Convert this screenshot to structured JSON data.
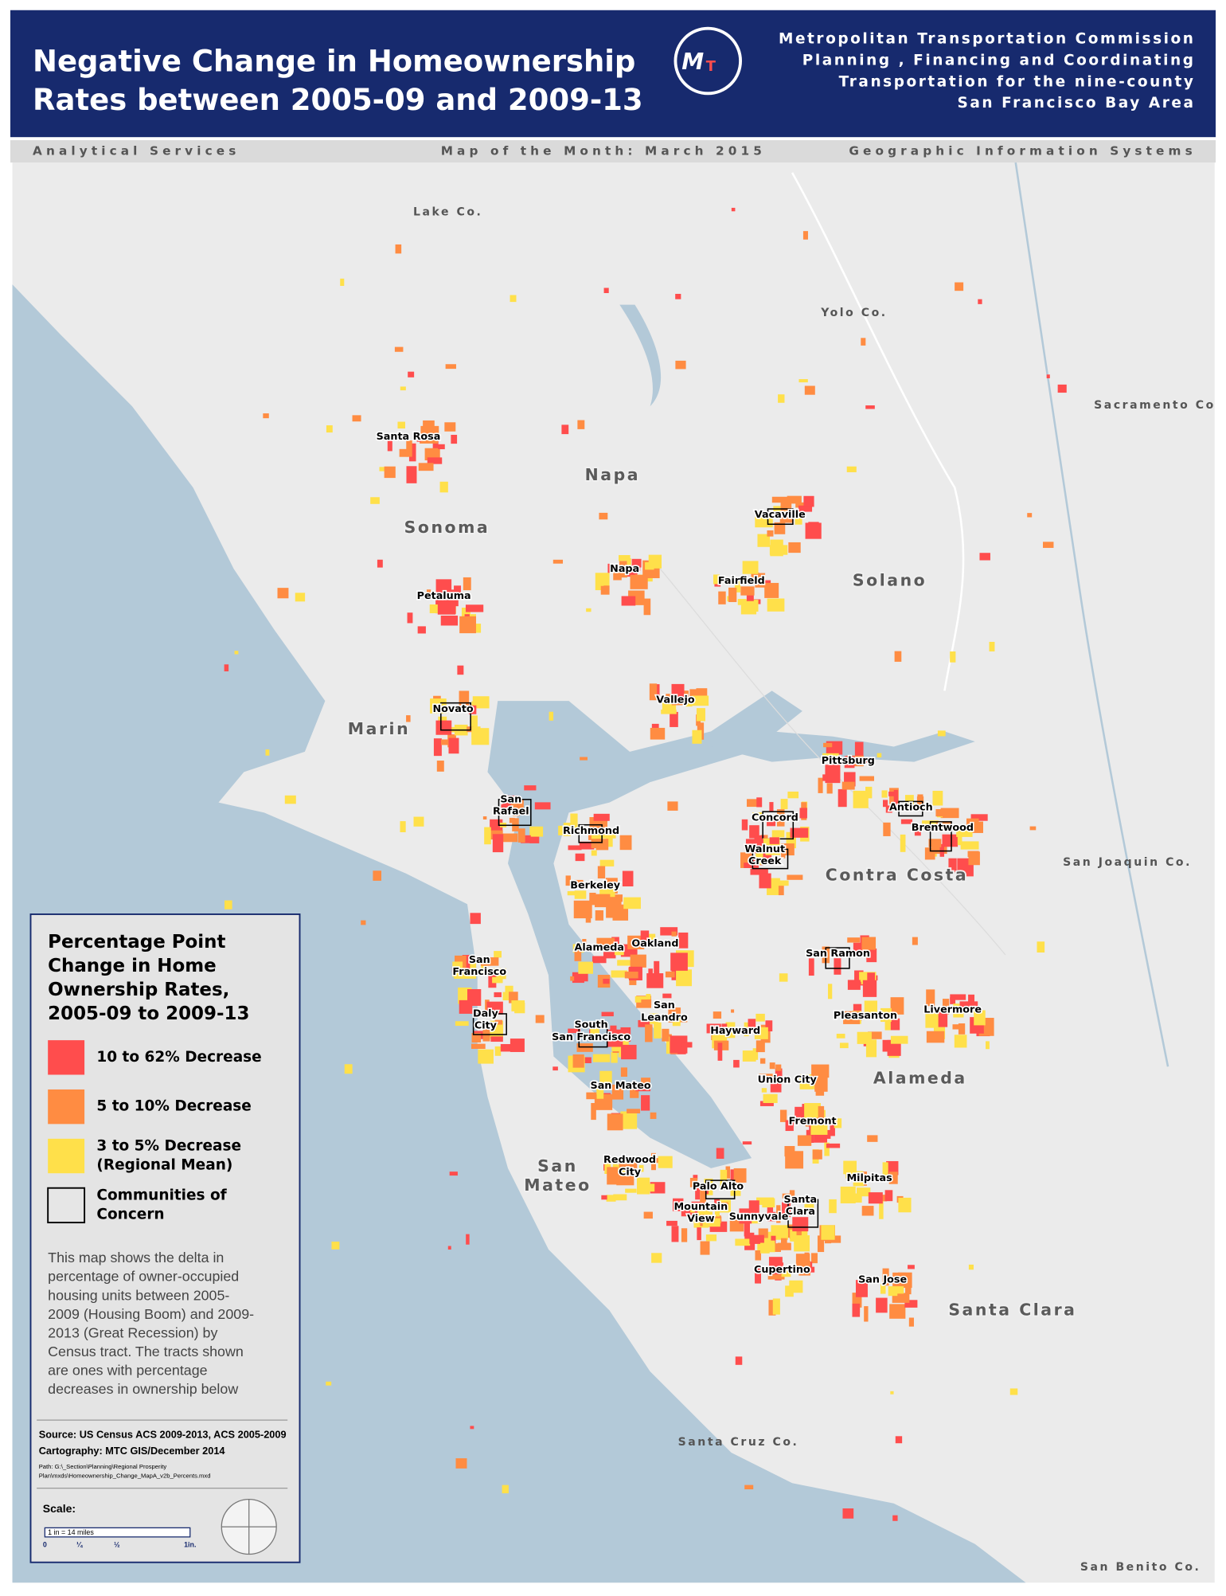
{
  "header": {
    "title_lines": [
      "Negative Change in Homeownership",
      "Rates between 2005-09 and 2009-13"
    ],
    "logo_letters": [
      "M",
      "T"
    ],
    "org_lines": [
      "Metropolitan Transportation Commission",
      "Planning , Financing and Coordinating",
      "Transportation for the nine-county",
      "San Francisco Bay Area"
    ]
  },
  "subheader": {
    "left": "Analytical Services",
    "center": "Map of the Month: March 2015",
    "right": "Geographic Information Systems"
  },
  "map": {
    "counties": [
      "Sonoma",
      "Napa",
      "Solano",
      "Marin",
      "Contra Costa",
      "Alameda",
      [
        "San",
        "Mateo"
      ],
      "Santa Clara"
    ],
    "outside_counties": [
      "Lake Co.",
      "Yolo Co.",
      "Sacramento Co",
      "San Joaquin Co.",
      "Santa Cruz Co.",
      "San Benito Co."
    ],
    "cities": [
      "Santa Rosa",
      "Napa",
      "Vacaville",
      "Fairfield",
      "Petaluma",
      "Novato",
      "Vallejo",
      "Pittsburg",
      [
        "San",
        "Rafael"
      ],
      "Antioch",
      "Richmond",
      "Concord",
      "Brentwood",
      [
        "Walnut",
        "Creek"
      ],
      "Berkeley",
      "Alameda",
      "Oakland",
      "San Ramon",
      [
        "San",
        "Francisco"
      ],
      [
        "Daly",
        "City"
      ],
      [
        "San",
        "Leandro"
      ],
      "Pleasanton",
      "Livermore",
      [
        "South",
        "San Francisco"
      ],
      "Hayward",
      "Union City",
      "San Mateo",
      "Fremont",
      [
        "Redwood",
        "City"
      ],
      "Palo Alto",
      "Milpitas",
      [
        "Santa",
        "Clara"
      ],
      [
        "Mountain",
        "View"
      ],
      "Sunnyvale",
      "Cupertino",
      "San Jose"
    ]
  },
  "legend": {
    "title_lines": [
      "Percentage Point",
      "Change in Home",
      "Ownership Rates,",
      "2005-09 to 2009-13"
    ],
    "items": [
      {
        "label": [
          "10 to 62% Decrease"
        ],
        "color": "#ff4d4d"
      },
      {
        "label": [
          "5 to 10% Decrease"
        ],
        "color": "#ff8c42"
      },
      {
        "label": [
          "3 to 5% Decrease",
          "(Regional Mean)"
        ],
        "color": "#ffe04a"
      },
      {
        "label": [
          "Communities of",
          "Concern"
        ],
        "color": "#e6e6e6"
      }
    ],
    "description_lines": [
      "This map shows the delta in",
      "percentage of owner-occupied",
      "housing units between 2005-",
      "2009 (Housing Boom) and 2009-",
      "2013 (Great Recession) by",
      "Census tract. The tracts shown",
      "are  ones with percentage",
      "decreases in ownership below"
    ],
    "source_lines": [
      "Source: US Census ACS 2009-2013, ACS 2005-2009",
      "Cartography: MTC GIS/December 2014"
    ],
    "path_lines": [
      "Path: G:\\_Section\\Planning\\Regional Prosperity",
      "Plan\\mxds\\Homeownership_Change_MapA_v2b_Percents.mxd"
    ],
    "scale_title": "Scale:",
    "scale_text": "1 in = 14 miles",
    "scale_ticks": [
      "0",
      "¼",
      "½",
      "1in."
    ]
  }
}
